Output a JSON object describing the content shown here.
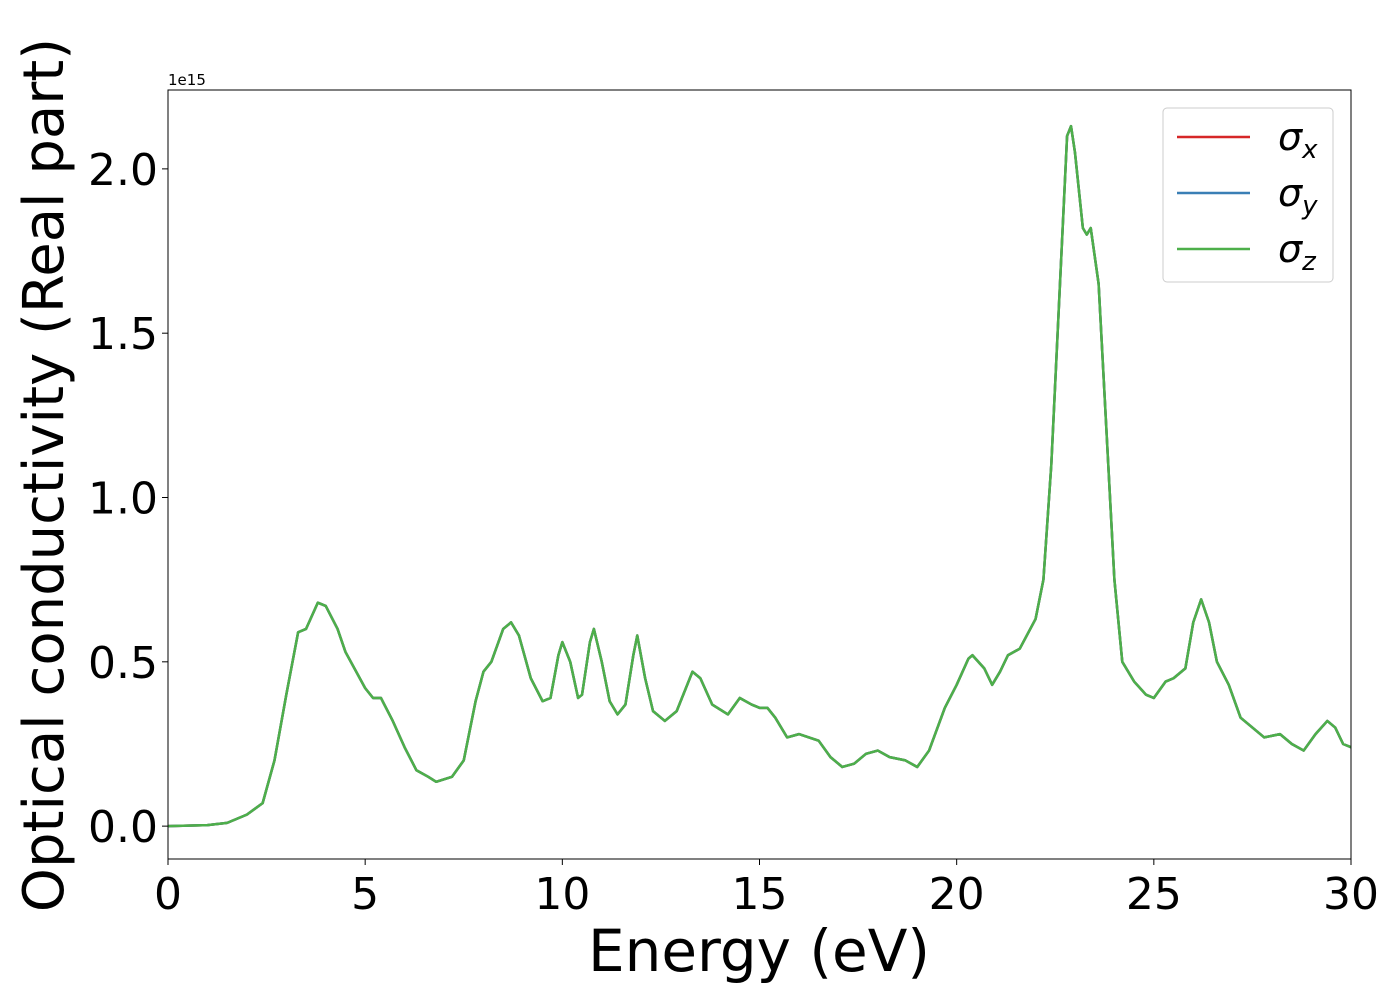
{
  "chart_data": {
    "type": "line",
    "xlabel": "Energy (eV)",
    "ylabel": "Optical conductivity (Real part)",
    "y_offset_label": "1e15",
    "x": [
      0,
      1,
      1.5,
      2,
      2.4,
      2.7,
      3,
      3.3,
      3.5,
      3.8,
      4,
      4.3,
      4.5,
      5,
      5.2,
      5.4,
      5.7,
      6,
      6.3,
      6.6,
      6.8,
      7.2,
      7.5,
      7.8,
      8,
      8.2,
      8.5,
      8.7,
      8.9,
      9.2,
      9.5,
      9.7,
      9.9,
      10,
      10.2,
      10.4,
      10.5,
      10.7,
      10.8,
      11,
      11.2,
      11.4,
      11.6,
      11.8,
      11.9,
      12.1,
      12.3,
      12.6,
      12.9,
      13.3,
      13.5,
      13.8,
      14.2,
      14.5,
      14.8,
      15,
      15.2,
      15.4,
      15.7,
      16,
      16.5,
      16.8,
      17.1,
      17.4,
      17.7,
      18,
      18.3,
      18.7,
      19,
      19.3,
      19.7,
      20,
      20.3,
      20.4,
      20.7,
      20.9,
      21.1,
      21.3,
      21.6,
      22,
      22.2,
      22.4,
      22.6,
      22.8,
      22.9,
      23,
      23.2,
      23.3,
      23.4,
      23.6,
      23.8,
      24,
      24.2,
      24.5,
      24.8,
      25,
      25.3,
      25.5,
      25.8,
      26,
      26.2,
      26.4,
      26.6,
      26.9,
      27.2,
      27.5,
      27.8,
      28.2,
      28.5,
      28.8,
      29.1,
      29.4,
      29.6,
      29.8,
      30
    ],
    "series": [
      {
        "name": "σx",
        "color": "#d62728",
        "values": [
          0,
          0.003,
          0.01,
          0.035,
          0.07,
          0.2,
          0.4,
          0.59,
          0.6,
          0.68,
          0.67,
          0.6,
          0.53,
          0.42,
          0.39,
          0.39,
          0.32,
          0.24,
          0.17,
          0.15,
          0.135,
          0.15,
          0.2,
          0.38,
          0.47,
          0.5,
          0.6,
          0.62,
          0.58,
          0.45,
          0.38,
          0.39,
          0.52,
          0.56,
          0.5,
          0.39,
          0.4,
          0.56,
          0.6,
          0.5,
          0.38,
          0.34,
          0.37,
          0.52,
          0.58,
          0.45,
          0.35,
          0.32,
          0.35,
          0.47,
          0.45,
          0.37,
          0.34,
          0.39,
          0.37,
          0.36,
          0.36,
          0.33,
          0.27,
          0.28,
          0.26,
          0.21,
          0.18,
          0.19,
          0.22,
          0.23,
          0.21,
          0.2,
          0.18,
          0.23,
          0.36,
          0.43,
          0.51,
          0.52,
          0.48,
          0.43,
          0.47,
          0.52,
          0.54,
          0.63,
          0.75,
          1.1,
          1.6,
          2.1,
          2.13,
          2.05,
          1.82,
          1.8,
          1.82,
          1.65,
          1.2,
          0.75,
          0.5,
          0.44,
          0.4,
          0.39,
          0.44,
          0.45,
          0.48,
          0.62,
          0.69,
          0.62,
          0.5,
          0.43,
          0.33,
          0.3,
          0.27,
          0.28,
          0.25,
          0.23,
          0.28,
          0.32,
          0.3,
          0.25,
          0.24
        ]
      },
      {
        "name": "σy",
        "color": "#3a7fb5",
        "values": [
          0,
          0.003,
          0.01,
          0.035,
          0.07,
          0.2,
          0.4,
          0.59,
          0.6,
          0.68,
          0.67,
          0.6,
          0.53,
          0.42,
          0.39,
          0.39,
          0.32,
          0.24,
          0.17,
          0.15,
          0.135,
          0.15,
          0.2,
          0.38,
          0.47,
          0.5,
          0.6,
          0.62,
          0.58,
          0.45,
          0.38,
          0.39,
          0.52,
          0.56,
          0.5,
          0.39,
          0.4,
          0.56,
          0.6,
          0.5,
          0.38,
          0.34,
          0.37,
          0.52,
          0.58,
          0.45,
          0.35,
          0.32,
          0.35,
          0.47,
          0.45,
          0.37,
          0.34,
          0.39,
          0.37,
          0.36,
          0.36,
          0.33,
          0.27,
          0.28,
          0.26,
          0.21,
          0.18,
          0.19,
          0.22,
          0.23,
          0.21,
          0.2,
          0.18,
          0.23,
          0.36,
          0.43,
          0.51,
          0.52,
          0.48,
          0.43,
          0.47,
          0.52,
          0.54,
          0.63,
          0.75,
          1.1,
          1.6,
          2.1,
          2.13,
          2.05,
          1.82,
          1.8,
          1.82,
          1.65,
          1.2,
          0.75,
          0.5,
          0.44,
          0.4,
          0.39,
          0.44,
          0.45,
          0.48,
          0.62,
          0.69,
          0.62,
          0.5,
          0.43,
          0.33,
          0.3,
          0.27,
          0.28,
          0.25,
          0.23,
          0.28,
          0.32,
          0.3,
          0.25,
          0.24
        ]
      },
      {
        "name": "σz",
        "color": "#4daf4a",
        "values": [
          0,
          0.003,
          0.01,
          0.035,
          0.07,
          0.2,
          0.4,
          0.59,
          0.6,
          0.68,
          0.67,
          0.6,
          0.53,
          0.42,
          0.39,
          0.39,
          0.32,
          0.24,
          0.17,
          0.15,
          0.135,
          0.15,
          0.2,
          0.38,
          0.47,
          0.5,
          0.6,
          0.62,
          0.58,
          0.45,
          0.38,
          0.39,
          0.52,
          0.56,
          0.5,
          0.39,
          0.4,
          0.56,
          0.6,
          0.5,
          0.38,
          0.34,
          0.37,
          0.52,
          0.58,
          0.45,
          0.35,
          0.32,
          0.35,
          0.47,
          0.45,
          0.37,
          0.34,
          0.39,
          0.37,
          0.36,
          0.36,
          0.33,
          0.27,
          0.28,
          0.26,
          0.21,
          0.18,
          0.19,
          0.22,
          0.23,
          0.21,
          0.2,
          0.18,
          0.23,
          0.36,
          0.43,
          0.51,
          0.52,
          0.48,
          0.43,
          0.47,
          0.52,
          0.54,
          0.63,
          0.75,
          1.1,
          1.6,
          2.1,
          2.13,
          2.05,
          1.82,
          1.8,
          1.82,
          1.65,
          1.2,
          0.75,
          0.5,
          0.44,
          0.4,
          0.39,
          0.44,
          0.45,
          0.48,
          0.62,
          0.69,
          0.62,
          0.5,
          0.43,
          0.33,
          0.3,
          0.27,
          0.28,
          0.25,
          0.23,
          0.28,
          0.32,
          0.3,
          0.25,
          0.24
        ]
      }
    ],
    "xlim": [
      0,
      30
    ],
    "xticks": [
      0,
      5,
      10,
      15,
      20,
      25,
      30
    ],
    "ylim": [
      -0.1,
      2.24
    ],
    "yticks": [
      {
        "value": 0,
        "label": "0.0"
      },
      0.5,
      {
        "value": 1,
        "label": "1.0"
      },
      1.5,
      {
        "value": 2,
        "label": "2.0"
      }
    ],
    "grid": false,
    "legend": "upper right"
  }
}
